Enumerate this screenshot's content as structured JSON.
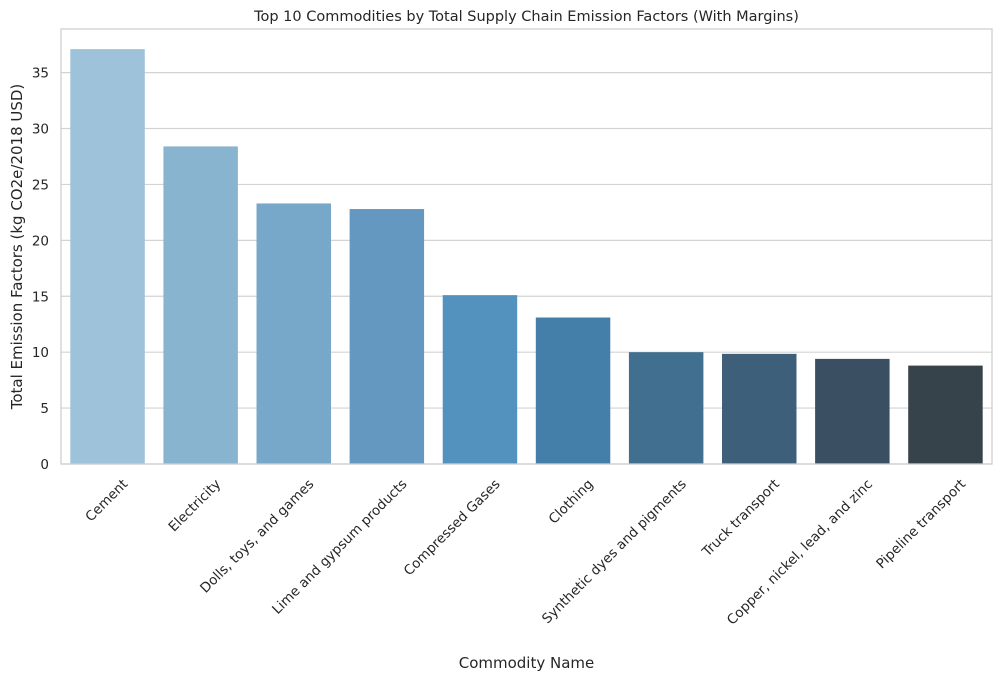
{
  "chart_data": {
    "type": "bar",
    "title": "Top 10 Commodities by Total Supply Chain Emission Factors (With Margins)",
    "xlabel": "Commodity Name",
    "ylabel": "Total Emission Factors (kg CO2e/2018 USD)",
    "categories": [
      "Cement",
      "Electricity",
      "Dolls, toys, and games",
      "Lime and gypsum products",
      "Compressed Gases",
      "Clothing",
      "Synthetic dyes and pigments",
      "Truck transport",
      "Copper, nickel, lead, and zinc",
      "Pipeline transport"
    ],
    "values": [
      37.1,
      28.4,
      23.3,
      22.8,
      15.1,
      13.1,
      10.0,
      9.85,
      9.4,
      8.8
    ],
    "colors": [
      "#9ec2da",
      "#88b4d0",
      "#77a8c9",
      "#6498c1",
      "#5391be",
      "#447fa9",
      "#406f8f",
      "#3e5f7a",
      "#3b4f62",
      "#36434b"
    ],
    "yticks": [
      0,
      5,
      10,
      15,
      20,
      25,
      30,
      35
    ],
    "ylim": [
      0,
      38.9
    ],
    "grid": "horizontal",
    "xtick_rotation": 45
  }
}
